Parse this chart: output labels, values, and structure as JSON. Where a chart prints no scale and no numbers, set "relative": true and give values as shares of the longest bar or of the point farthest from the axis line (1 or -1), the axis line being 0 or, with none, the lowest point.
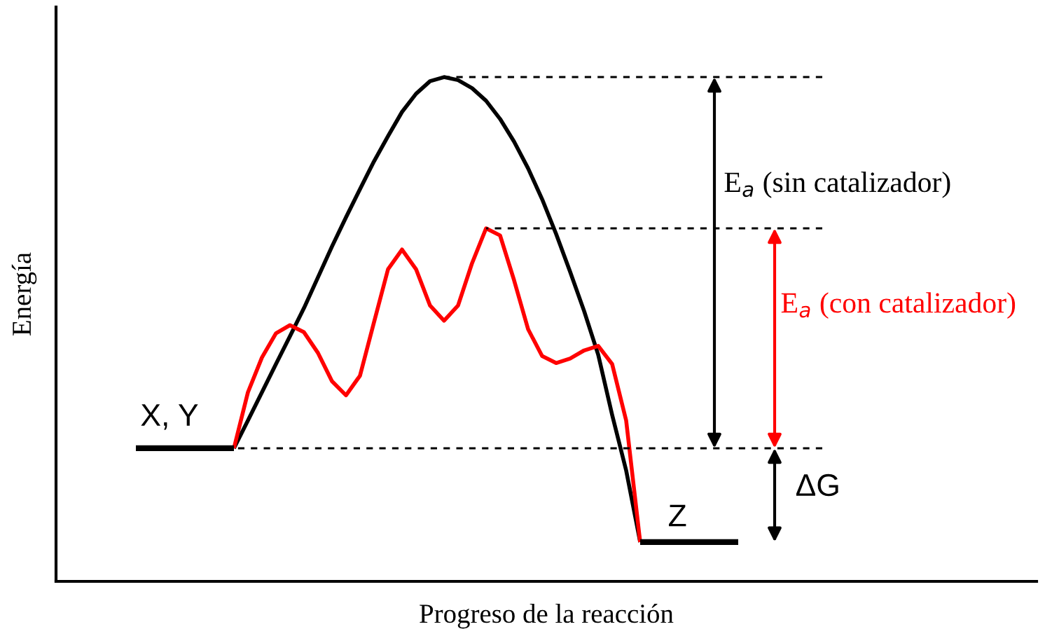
{
  "chart_data": {
    "type": "line",
    "relative": true,
    "xlabel": "Progreso de la reacción",
    "ylabel": "Energía",
    "categories": [
      null,
      null,
      null,
      null,
      null,
      null,
      null,
      null,
      null,
      null,
      null,
      null,
      null,
      null,
      null,
      null,
      null,
      null,
      null,
      null,
      null,
      null,
      null,
      null,
      null,
      null,
      null,
      null,
      null,
      null,
      null,
      null,
      null,
      null,
      null,
      null,
      null,
      null,
      null,
      null,
      null,
      null,
      null,
      null,
      null,
      null,
      null,
      null,
      null,
      null
    ],
    "series": [
      {
        "color": "#000000",
        "values": [
          null,
          null,
          null,
          null,
          null,
          null,
          null,
          0.264,
          0.319,
          0.375,
          0.431,
          0.486,
          0.542,
          0.603,
          0.664,
          0.722,
          0.778,
          0.833,
          0.883,
          0.931,
          0.967,
          0.992,
          1.0,
          0.994,
          0.978,
          0.953,
          0.917,
          0.872,
          0.819,
          0.758,
          0.689,
          0.614,
          0.536,
          0.45,
          0.33,
          0.22,
          0.078,
          null,
          null,
          null,
          null,
          null,
          null,
          null,
          null,
          null,
          null,
          null,
          null,
          null
        ]
      },
      {
        "color": "#ff0000",
        "values": [
          null,
          null,
          null,
          null,
          null,
          null,
          null,
          0.264,
          0.375,
          0.444,
          0.492,
          0.508,
          0.494,
          0.453,
          0.397,
          0.369,
          0.408,
          0.514,
          0.619,
          0.658,
          0.619,
          0.547,
          0.517,
          0.547,
          0.631,
          0.7,
          0.686,
          0.597,
          0.5,
          0.447,
          0.433,
          0.442,
          0.458,
          0.467,
          0.431,
          0.319,
          0.078,
          null,
          null,
          null,
          null,
          null,
          null,
          null,
          null,
          null,
          null,
          null,
          null,
          null
        ]
      },
      {
        "color": "#000000",
        "values": [
          0.264,
          0.264,
          0.264,
          0.264,
          0.264,
          0.264,
          0.264,
          0.264,
          null,
          null,
          null,
          null,
          null,
          null,
          null,
          null,
          null,
          null,
          null,
          null,
          null,
          null,
          null,
          null,
          null,
          null,
          null,
          null,
          null,
          null,
          null,
          null,
          null,
          null,
          null,
          null,
          null,
          null,
          null,
          null,
          null,
          null,
          null,
          null,
          null,
          null,
          null,
          null,
          null,
          null
        ]
      },
      {
        "color": "#000000",
        "values": [
          null,
          null,
          null,
          null,
          null,
          null,
          null,
          null,
          null,
          null,
          null,
          null,
          null,
          null,
          null,
          null,
          null,
          null,
          null,
          null,
          null,
          null,
          null,
          null,
          null,
          null,
          null,
          null,
          null,
          null,
          null,
          null,
          null,
          null,
          null,
          null,
          0.078,
          0.078,
          0.078,
          0.078,
          0.078,
          0.078,
          0.078,
          0.078,
          null,
          null,
          null,
          null,
          null,
          null
        ]
      },
      {
        "color": "#000000",
        "line_style": "dashed",
        "values": [
          null,
          null,
          null,
          null,
          null,
          null,
          null,
          null,
          null,
          null,
          null,
          null,
          null,
          null,
          null,
          null,
          null,
          null,
          null,
          null,
          null,
          null,
          1.0,
          1.0,
          1.0,
          1.0,
          1.0,
          1.0,
          1.0,
          1.0,
          1.0,
          1.0,
          1.0,
          1.0,
          1.0,
          1.0,
          1.0,
          1.0,
          1.0,
          1.0,
          1.0,
          1.0,
          1.0,
          1.0,
          1.0,
          1.0,
          1.0,
          1.0,
          1.0,
          1.0
        ]
      },
      {
        "color": "#000000",
        "line_style": "dashed",
        "values": [
          null,
          null,
          null,
          null,
          null,
          null,
          null,
          null,
          null,
          null,
          null,
          null,
          null,
          null,
          null,
          null,
          null,
          null,
          null,
          null,
          null,
          null,
          null,
          null,
          null,
          0.7,
          0.7,
          0.7,
          0.7,
          0.7,
          0.7,
          0.7,
          0.7,
          0.7,
          0.7,
          0.7,
          0.7,
          0.7,
          0.7,
          0.7,
          0.7,
          0.7,
          0.7,
          0.7,
          0.7,
          0.7,
          0.7,
          0.7,
          0.7,
          0.7
        ]
      },
      {
        "color": "#000000",
        "line_style": "dashed",
        "values": [
          null,
          null,
          null,
          null,
          null,
          null,
          null,
          0.264,
          0.264,
          0.264,
          0.264,
          0.264,
          0.264,
          0.264,
          0.264,
          0.264,
          0.264,
          0.264,
          0.264,
          0.264,
          0.264,
          0.264,
          0.264,
          0.264,
          0.264,
          0.264,
          0.264,
          0.264,
          0.264,
          0.264,
          0.264,
          0.264,
          0.264,
          0.264,
          0.264,
          0.264,
          0.264,
          0.264,
          0.264,
          0.264,
          0.264,
          0.264,
          0.264,
          0.264,
          0.264,
          0.264,
          0.264,
          0.264,
          0.264,
          0.264
        ]
      }
    ],
    "annotations": [
      "X, Y",
      "Z",
      "E$_{a}$ (sin catalizador)",
      "E$_{a}$ (con catalizador)",
      "ΔG"
    ]
  }
}
